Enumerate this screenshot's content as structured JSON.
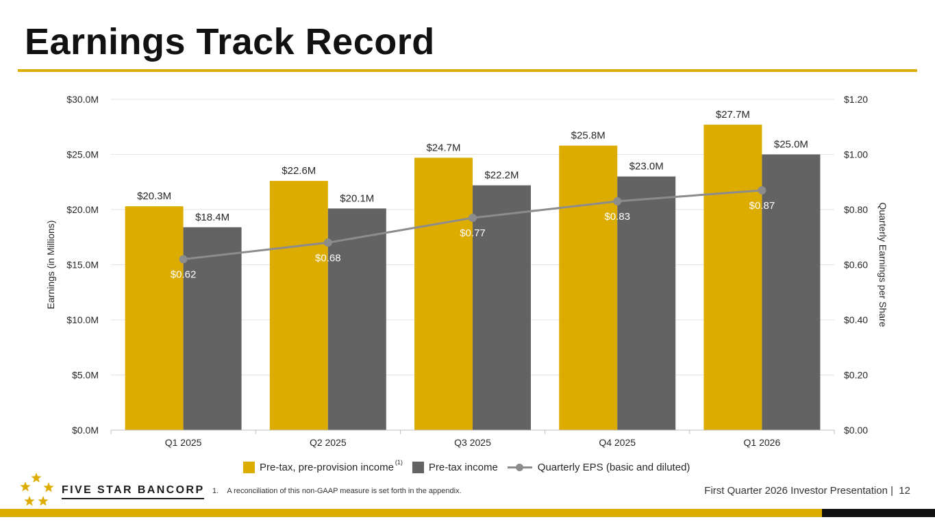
{
  "slide": {
    "title": "Earnings Track Record",
    "footnote": "1.    A reconciliation of this non-GAAP measure is set forth in the appendix.",
    "footer": "First Quarter 2026 Investor Presentation |  12",
    "logo_text": "FIVE STAR BANCORP",
    "colors": {
      "gold": "#DDAC00",
      "gray": "#636363",
      "eps_line": "#8C8C8C",
      "eps_label": "#ffffff",
      "footer_black": "#111111"
    }
  },
  "chart_data": {
    "type": "bar",
    "categories": [
      "Q1 2025",
      "Q2 2025",
      "Q3 2025",
      "Q4 2025",
      "Q1 2026"
    ],
    "series": [
      {
        "name": "Pre-tax, pre-provision income",
        "superscript": "(1)",
        "values": [
          20.3,
          22.6,
          24.7,
          25.8,
          27.7
        ],
        "labels": [
          "$20.3M",
          "$22.6M",
          "$24.7M",
          "$25.8M",
          "$27.7M"
        ]
      },
      {
        "name": "Pre-tax income",
        "values": [
          18.4,
          20.1,
          22.2,
          23.0,
          25.0
        ],
        "labels": [
          "$18.4M",
          "$20.1M",
          "$22.2M",
          "$23.0M",
          "$25.0M"
        ]
      }
    ],
    "line_series": {
      "name": "Quarterly EPS (basic and diluted)",
      "axis": "right",
      "values": [
        0.62,
        0.68,
        0.77,
        0.83,
        0.87
      ],
      "labels": [
        "$0.62",
        "$0.68",
        "$0.77",
        "$0.83",
        "$0.87"
      ]
    },
    "ylabel": "Earnings (in Millions)",
    "y2label": "Quarterly Earnings per Share",
    "ylim": [
      0,
      30
    ],
    "y2lim": [
      0,
      1.2
    ],
    "yticks": [
      0,
      5,
      10,
      15,
      20,
      25,
      30
    ],
    "ytick_labels": [
      "$0.0M",
      "$5.0M",
      "$10.0M",
      "$15.0M",
      "$20.0M",
      "$25.0M",
      "$30.0M"
    ],
    "y2ticks": [
      0,
      0.2,
      0.4,
      0.6,
      0.8,
      1.0,
      1.2
    ],
    "y2tick_labels": [
      "$0.00",
      "$0.20",
      "$0.40",
      "$0.60",
      "$0.80",
      "$1.00",
      "$1.20"
    ],
    "grid": true,
    "legend_position": "bottom"
  }
}
